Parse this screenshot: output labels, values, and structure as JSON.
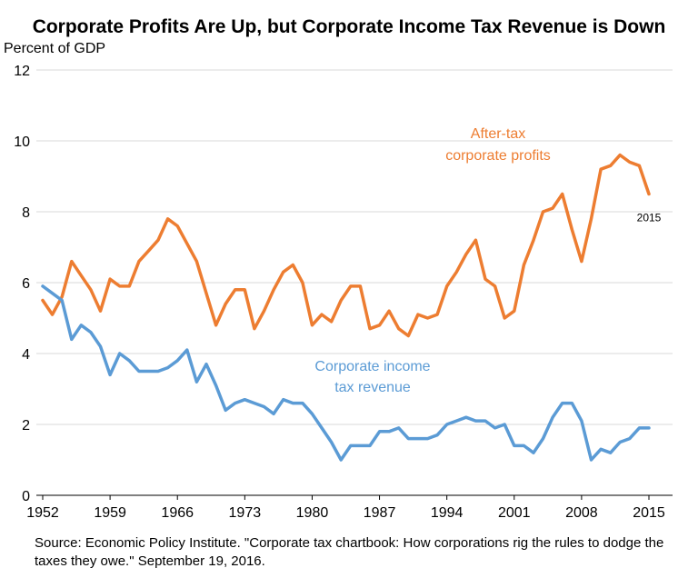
{
  "chart_data": {
    "type": "line",
    "title": "Corporate Profits Are Up, but Corporate Income Tax Revenue is Down",
    "ylabel": "Percent of GDP",
    "xlim": [
      1952,
      2015
    ],
    "ylim": [
      0,
      12
    ],
    "yticks": [
      0,
      2,
      4,
      6,
      8,
      10,
      12
    ],
    "xticks": [
      1952,
      1959,
      1966,
      1973,
      1980,
      1987,
      1994,
      2001,
      2008,
      2015
    ],
    "grid": true,
    "x": [
      1952,
      1953,
      1954,
      1955,
      1956,
      1957,
      1958,
      1959,
      1960,
      1961,
      1962,
      1963,
      1964,
      1965,
      1966,
      1967,
      1968,
      1969,
      1970,
      1971,
      1972,
      1973,
      1974,
      1975,
      1976,
      1977,
      1978,
      1979,
      1980,
      1981,
      1982,
      1983,
      1984,
      1985,
      1986,
      1987,
      1988,
      1989,
      1990,
      1991,
      1992,
      1993,
      1994,
      1995,
      1996,
      1997,
      1998,
      1999,
      2000,
      2001,
      2002,
      2003,
      2004,
      2005,
      2006,
      2007,
      2008,
      2009,
      2010,
      2011,
      2012,
      2013,
      2014,
      2015
    ],
    "series": [
      {
        "name": "After-tax corporate profits",
        "label_lines": [
          "After-tax",
          "corporate profits"
        ],
        "color": "#ED7D31",
        "values": [
          5.5,
          5.1,
          5.6,
          6.6,
          6.2,
          5.8,
          5.2,
          6.1,
          5.9,
          5.9,
          6.6,
          6.9,
          7.2,
          7.8,
          7.6,
          7.1,
          6.6,
          5.7,
          4.8,
          5.4,
          5.8,
          5.8,
          4.7,
          5.2,
          5.8,
          6.3,
          6.5,
          6.0,
          4.8,
          5.1,
          4.9,
          5.5,
          5.9,
          5.9,
          4.7,
          4.8,
          5.2,
          4.7,
          4.5,
          5.1,
          5.0,
          5.1,
          5.9,
          6.3,
          6.8,
          7.2,
          6.1,
          5.9,
          5.0,
          5.2,
          6.5,
          7.2,
          8.0,
          8.1,
          8.5,
          7.5,
          6.6,
          7.8,
          9.2,
          9.3,
          9.6,
          9.4,
          9.3,
          8.5
        ]
      },
      {
        "name": "Corporate income tax revenue",
        "label_lines": [
          "Corporate income",
          "tax revenue"
        ],
        "color": "#5B9BD5",
        "values": [
          5.9,
          5.7,
          5.5,
          4.4,
          4.8,
          4.6,
          4.2,
          3.4,
          4.0,
          3.8,
          3.5,
          3.5,
          3.5,
          3.6,
          3.8,
          4.1,
          3.2,
          3.7,
          3.1,
          2.4,
          2.6,
          2.7,
          2.6,
          2.5,
          2.3,
          2.7,
          2.6,
          2.6,
          2.3,
          1.9,
          1.5,
          1.0,
          1.4,
          1.4,
          1.4,
          1.8,
          1.8,
          1.9,
          1.6,
          1.6,
          1.6,
          1.7,
          2.0,
          2.1,
          2.2,
          2.1,
          2.1,
          1.9,
          2.0,
          1.4,
          1.4,
          1.2,
          1.6,
          2.2,
          2.6,
          2.6,
          2.1,
          1.0,
          1.3,
          1.2,
          1.5,
          1.6,
          1.9,
          1.9
        ]
      }
    ],
    "end_label": "2015"
  },
  "source_text": "Source: Economic Policy Institute. \"Corporate tax chartbook: How corporations rig the rules to dodge the taxes they owe.\" September 19, 2016."
}
